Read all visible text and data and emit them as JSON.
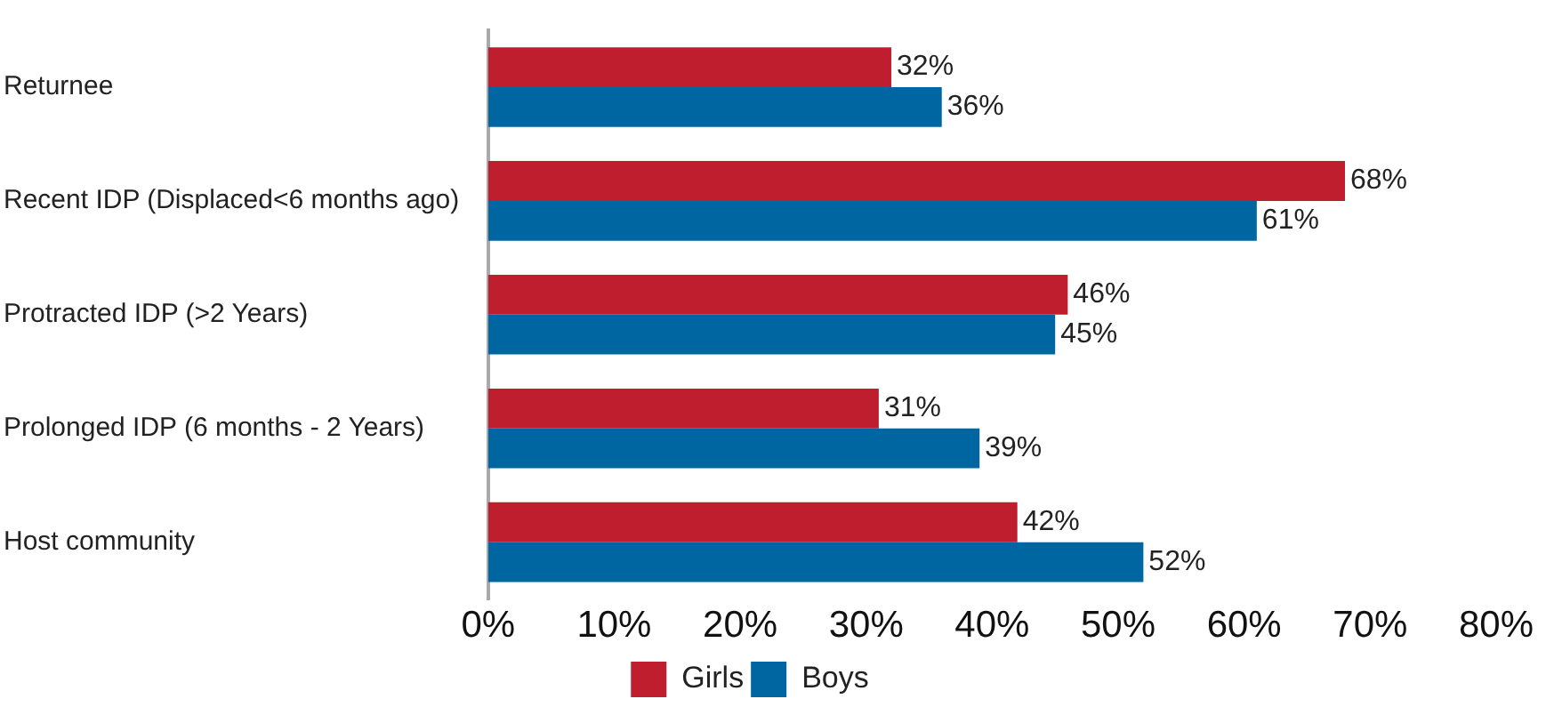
{
  "chart_data": {
    "type": "bar",
    "orientation": "horizontal",
    "categories": [
      "Returnee",
      "Recent IDP (Displaced<6 months ago)",
      "Protracted IDP (>2 Years)",
      "Prolonged IDP (6 months - 2 Years)",
      "Host community"
    ],
    "series": [
      {
        "name": "Girls",
        "color": "#be1e2d",
        "values": [
          32,
          68,
          46,
          31,
          42
        ],
        "value_labels": [
          "32%",
          "68%",
          "46%",
          "31%",
          "42%"
        ]
      },
      {
        "name": "Boys",
        "color": "#0066a1",
        "values": [
          36,
          61,
          45,
          39,
          52
        ],
        "value_labels": [
          "36%",
          "61%",
          "45%",
          "39%",
          "52%"
        ]
      }
    ],
    "xlim": [
      0,
      80
    ],
    "xticks": [
      {
        "value": 0,
        "label": "0%"
      },
      {
        "value": 10,
        "label": "10%"
      },
      {
        "value": 20,
        "label": "20%"
      },
      {
        "value": 30,
        "label": "30%"
      },
      {
        "value": 40,
        "label": "40%"
      },
      {
        "value": 50,
        "label": "50%"
      },
      {
        "value": 60,
        "label": "60%"
      },
      {
        "value": 70,
        "label": "70%"
      },
      {
        "value": 80,
        "label": "80%"
      }
    ],
    "grid": false,
    "legend": "bottom"
  }
}
